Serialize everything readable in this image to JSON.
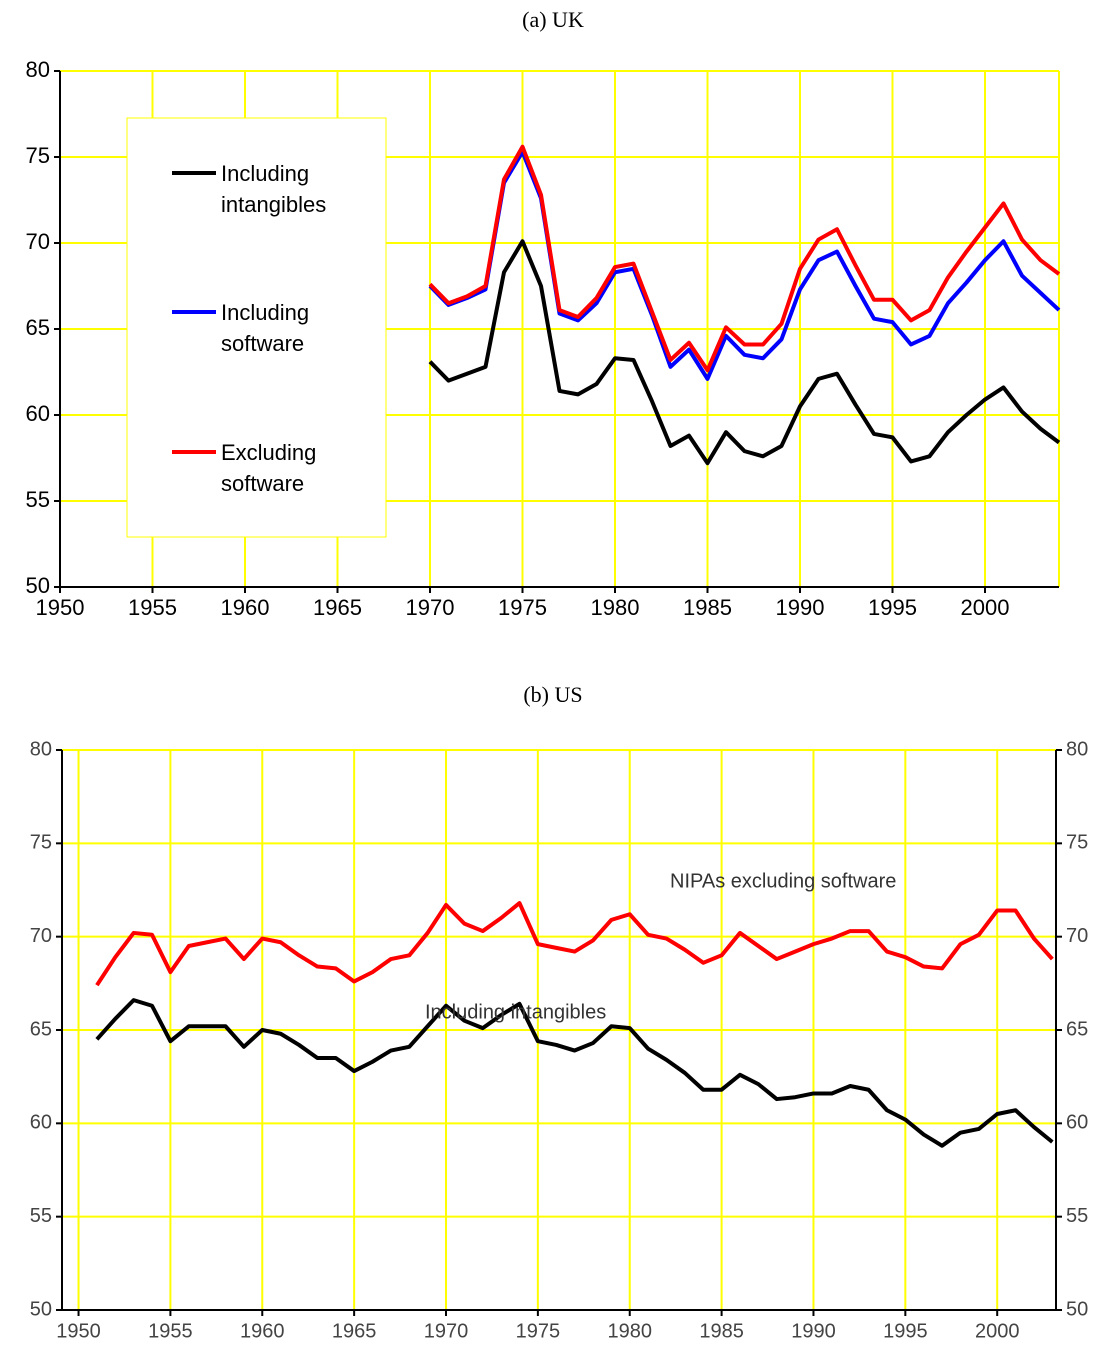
{
  "chart_data": [
    {
      "type": "line",
      "title": "(a) UK",
      "x": [
        1970,
        1971,
        1972,
        1973,
        1974,
        1975,
        1976,
        1977,
        1978,
        1979,
        1980,
        1981,
        1982,
        1983,
        1984,
        1985,
        1986,
        1987,
        1988,
        1989,
        1990,
        1991,
        1992,
        1993,
        1994,
        1995,
        1996,
        1997,
        1998,
        1999,
        2000,
        2001,
        2002,
        2003,
        2004
      ],
      "series": [
        {
          "name": "Including intangibles",
          "color": "#000000",
          "values": [
            63.1,
            62.0,
            62.4,
            62.8,
            68.3,
            70.1,
            67.5,
            61.4,
            61.2,
            61.8,
            63.3,
            63.2,
            60.8,
            58.2,
            58.8,
            57.2,
            59.0,
            57.9,
            57.6,
            58.2,
            60.5,
            62.1,
            62.4,
            60.6,
            58.9,
            58.7,
            57.3,
            57.6,
            59.0,
            60.0,
            60.9,
            61.6,
            60.2,
            59.2,
            58.4
          ]
        },
        {
          "name": "Including software",
          "color": "#0000ff",
          "values": [
            67.5,
            66.4,
            66.8,
            67.3,
            73.5,
            75.3,
            72.6,
            65.9,
            65.5,
            66.5,
            68.3,
            68.5,
            65.8,
            62.8,
            63.8,
            62.1,
            64.6,
            63.5,
            63.3,
            64.4,
            67.3,
            69.0,
            69.5,
            67.5,
            65.6,
            65.4,
            64.1,
            64.6,
            66.5,
            67.7,
            69.0,
            70.1,
            68.1,
            67.1,
            66.1
          ]
        },
        {
          "name": "Excluding software",
          "color": "#ff0000",
          "values": [
            67.6,
            66.5,
            66.9,
            67.5,
            73.7,
            75.6,
            72.8,
            66.1,
            65.7,
            66.8,
            68.6,
            68.8,
            66.0,
            63.2,
            64.2,
            62.6,
            65.1,
            64.1,
            64.1,
            65.3,
            68.5,
            70.2,
            70.8,
            68.7,
            66.7,
            66.7,
            65.5,
            66.1,
            68.0,
            69.5,
            70.9,
            72.3,
            70.2,
            69.0,
            68.2
          ]
        }
      ],
      "xlim": [
        1950,
        2004
      ],
      "xticks": [
        1950,
        1955,
        1960,
        1965,
        1970,
        1975,
        1980,
        1985,
        1990,
        1995,
        2000
      ],
      "ylim": [
        50,
        80
      ],
      "yticks": [
        50,
        55,
        60,
        65,
        70,
        75,
        80
      ],
      "grid": true,
      "legend": "upper left"
    },
    {
      "type": "line",
      "title": "(b) US",
      "x": [
        1951,
        1952,
        1953,
        1954,
        1955,
        1956,
        1957,
        1958,
        1959,
        1960,
        1961,
        1962,
        1963,
        1964,
        1965,
        1966,
        1967,
        1968,
        1969,
        1970,
        1971,
        1972,
        1973,
        1974,
        1975,
        1976,
        1977,
        1978,
        1979,
        1980,
        1981,
        1982,
        1983,
        1984,
        1985,
        1986,
        1987,
        1988,
        1989,
        1990,
        1991,
        1992,
        1993,
        1994,
        1995,
        1996,
        1997,
        1998,
        1999,
        2000,
        2001,
        2002,
        2003
      ],
      "series": [
        {
          "name": "NIPAs excluding software",
          "color": "#ff0000",
          "values": [
            67.4,
            68.9,
            70.2,
            70.1,
            68.1,
            69.5,
            69.7,
            69.9,
            68.8,
            69.9,
            69.7,
            69.0,
            68.4,
            68.3,
            67.6,
            68.1,
            68.8,
            69.0,
            70.2,
            71.7,
            70.7,
            70.3,
            71.0,
            71.8,
            69.6,
            69.4,
            69.2,
            69.8,
            70.9,
            71.2,
            70.1,
            69.9,
            69.3,
            68.6,
            69.0,
            70.2,
            69.5,
            68.8,
            69.2,
            69.6,
            69.9,
            70.3,
            70.3,
            69.2,
            68.9,
            68.4,
            68.3,
            69.6,
            70.1,
            71.4,
            71.4,
            69.9,
            68.8
          ]
        },
        {
          "name": "Including intangibles",
          "color": "#000000",
          "values": [
            64.5,
            65.6,
            66.6,
            66.3,
            64.4,
            65.2,
            65.2,
            65.2,
            64.1,
            65.0,
            64.8,
            64.2,
            63.5,
            63.5,
            62.8,
            63.3,
            63.9,
            64.1,
            65.2,
            66.3,
            65.5,
            65.1,
            65.8,
            66.4,
            64.4,
            64.2,
            63.9,
            64.3,
            65.2,
            65.1,
            64.0,
            63.4,
            62.7,
            61.8,
            61.8,
            62.6,
            62.1,
            61.3,
            61.4,
            61.6,
            61.6,
            62.0,
            61.8,
            60.7,
            60.2,
            59.4,
            58.8,
            59.5,
            59.7,
            60.5,
            60.7,
            59.8,
            59.0
          ]
        }
      ],
      "xlim": [
        1949.1,
        2003.2
      ],
      "xticks": [
        1950,
        1955,
        1960,
        1965,
        1970,
        1975,
        1980,
        1985,
        1990,
        1995,
        2000
      ],
      "ylim": [
        50,
        80
      ],
      "yticks": [
        50,
        55,
        60,
        65,
        70,
        75,
        80
      ],
      "y2lim": [
        50,
        80
      ],
      "y2ticks": [
        50,
        55,
        60,
        65,
        70,
        75,
        80
      ],
      "grid": true,
      "legend": "inline"
    }
  ]
}
